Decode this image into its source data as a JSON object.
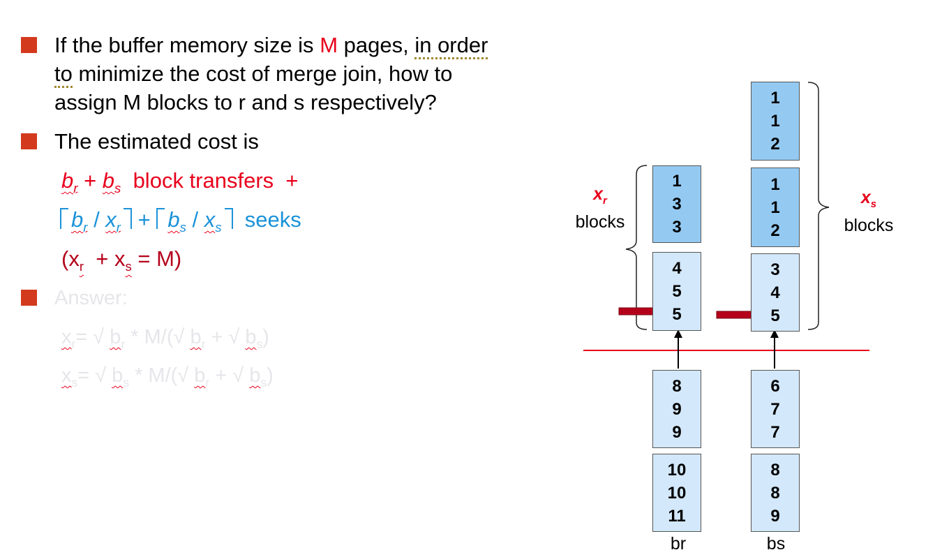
{
  "bullets": [
    {
      "line1_a": "If the buffer memory size is ",
      "line1_m": "M",
      "line1_b": " pages, ",
      "line1_c": "in order",
      "line2_a": "to",
      "line2_b": " minimize the cost of merge join, how to",
      "line3": "assign M blocks to r and s respectively?"
    },
    {
      "text": "The estimated cost is"
    },
    {
      "text": "Answer:"
    }
  ],
  "cost": {
    "line1": {
      "br": "b",
      "br_sub": "r",
      "plus": " + ",
      "bs": "b",
      "bs_sub": "s",
      "rest": "  block transfers  +"
    },
    "line2": {
      "b1": "b",
      "b1_sub": "r",
      "slash1": " / ",
      "x1": "x",
      "x1_sub": "r",
      "plus": " + ",
      "b2": "b",
      "b2_sub": "s",
      "slash2": " / ",
      "x2": "x",
      "x2_sub": "s",
      "rest": "  seeks"
    },
    "line3": {
      "open": "(x",
      "sub1": "r",
      "mid": "  + x",
      "sub2": "s",
      "end": " = M)"
    }
  },
  "answer": {
    "line1": {
      "x": "x",
      "x_sub": "r",
      "eq": "= √ ",
      "b": "b",
      "b_sub": "r",
      "mid": " * M/(√ ",
      "b2": "b",
      "b2_sub": "r",
      "plus": " + √ ",
      "b3": "b",
      "b3_sub": "s",
      "end": ")"
    },
    "line2": {
      "x": "x",
      "x_sub": "s",
      "eq": "= √ ",
      "b": "b",
      "b_sub": "s",
      "mid": " * M/(√ ",
      "b2": "b",
      "b2_sub": "r",
      "plus": " + √ ",
      "b3": "b",
      "b3_sub": "s",
      "end": ")"
    }
  },
  "diagram": {
    "xr_label": {
      "var": "x",
      "sub": "r",
      "word": "blocks"
    },
    "xs_label": {
      "var": "x",
      "sub": "s",
      "word": "blocks"
    },
    "r_blocks": [
      [
        "1",
        "3",
        "3"
      ],
      [
        "4",
        "5",
        "5"
      ],
      [
        "8",
        "9",
        "9"
      ],
      [
        "10",
        "10",
        "11"
      ]
    ],
    "s_blocks": [
      [
        "1",
        "1",
        "2"
      ],
      [
        "1",
        "1",
        "2"
      ],
      [
        "3",
        "4",
        "5"
      ],
      [
        "6",
        "7",
        "7"
      ],
      [
        "8",
        "8",
        "9"
      ]
    ],
    "col_labels": {
      "r": "br",
      "s": "bs"
    },
    "colors": {
      "dark_block": "#94caf2",
      "light_block": "#d3e8fb",
      "red_line": "#e8001c",
      "arrow": "#b5001b"
    }
  }
}
